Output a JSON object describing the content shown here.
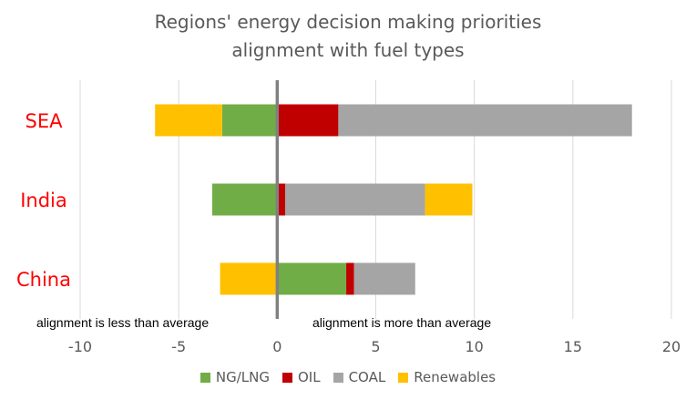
{
  "chart_data": {
    "type": "bar",
    "orientation": "horizontal",
    "stacked": true,
    "title": [
      "Regions' energy decision making priorities",
      "alignment with fuel types"
    ],
    "categories": [
      "SEA",
      "India",
      "China"
    ],
    "category_label_color": "#ff0000",
    "xlim": [
      -10,
      20
    ],
    "xticks": [
      "-10",
      "-5",
      "0",
      "5",
      "10",
      "15",
      "20"
    ],
    "grid": "vertical",
    "annotations": {
      "left": "alignment is less than average",
      "right": "alignment is more than average"
    },
    "legend_position": "bottom",
    "series": [
      {
        "name": "NG/LNG",
        "color": "#70ad47",
        "values": [
          -2.8,
          -3.3,
          3.5
        ]
      },
      {
        "name": "OIL",
        "color": "#c00000",
        "values": [
          3.1,
          0.4,
          0.4
        ]
      },
      {
        "name": "COAL",
        "color": "#a5a5a5",
        "values": [
          14.9,
          7.1,
          3.1
        ]
      },
      {
        "name": "Renewables",
        "color": "#ffc000",
        "values": [
          -3.4,
          2.4,
          -2.9
        ]
      }
    ]
  }
}
